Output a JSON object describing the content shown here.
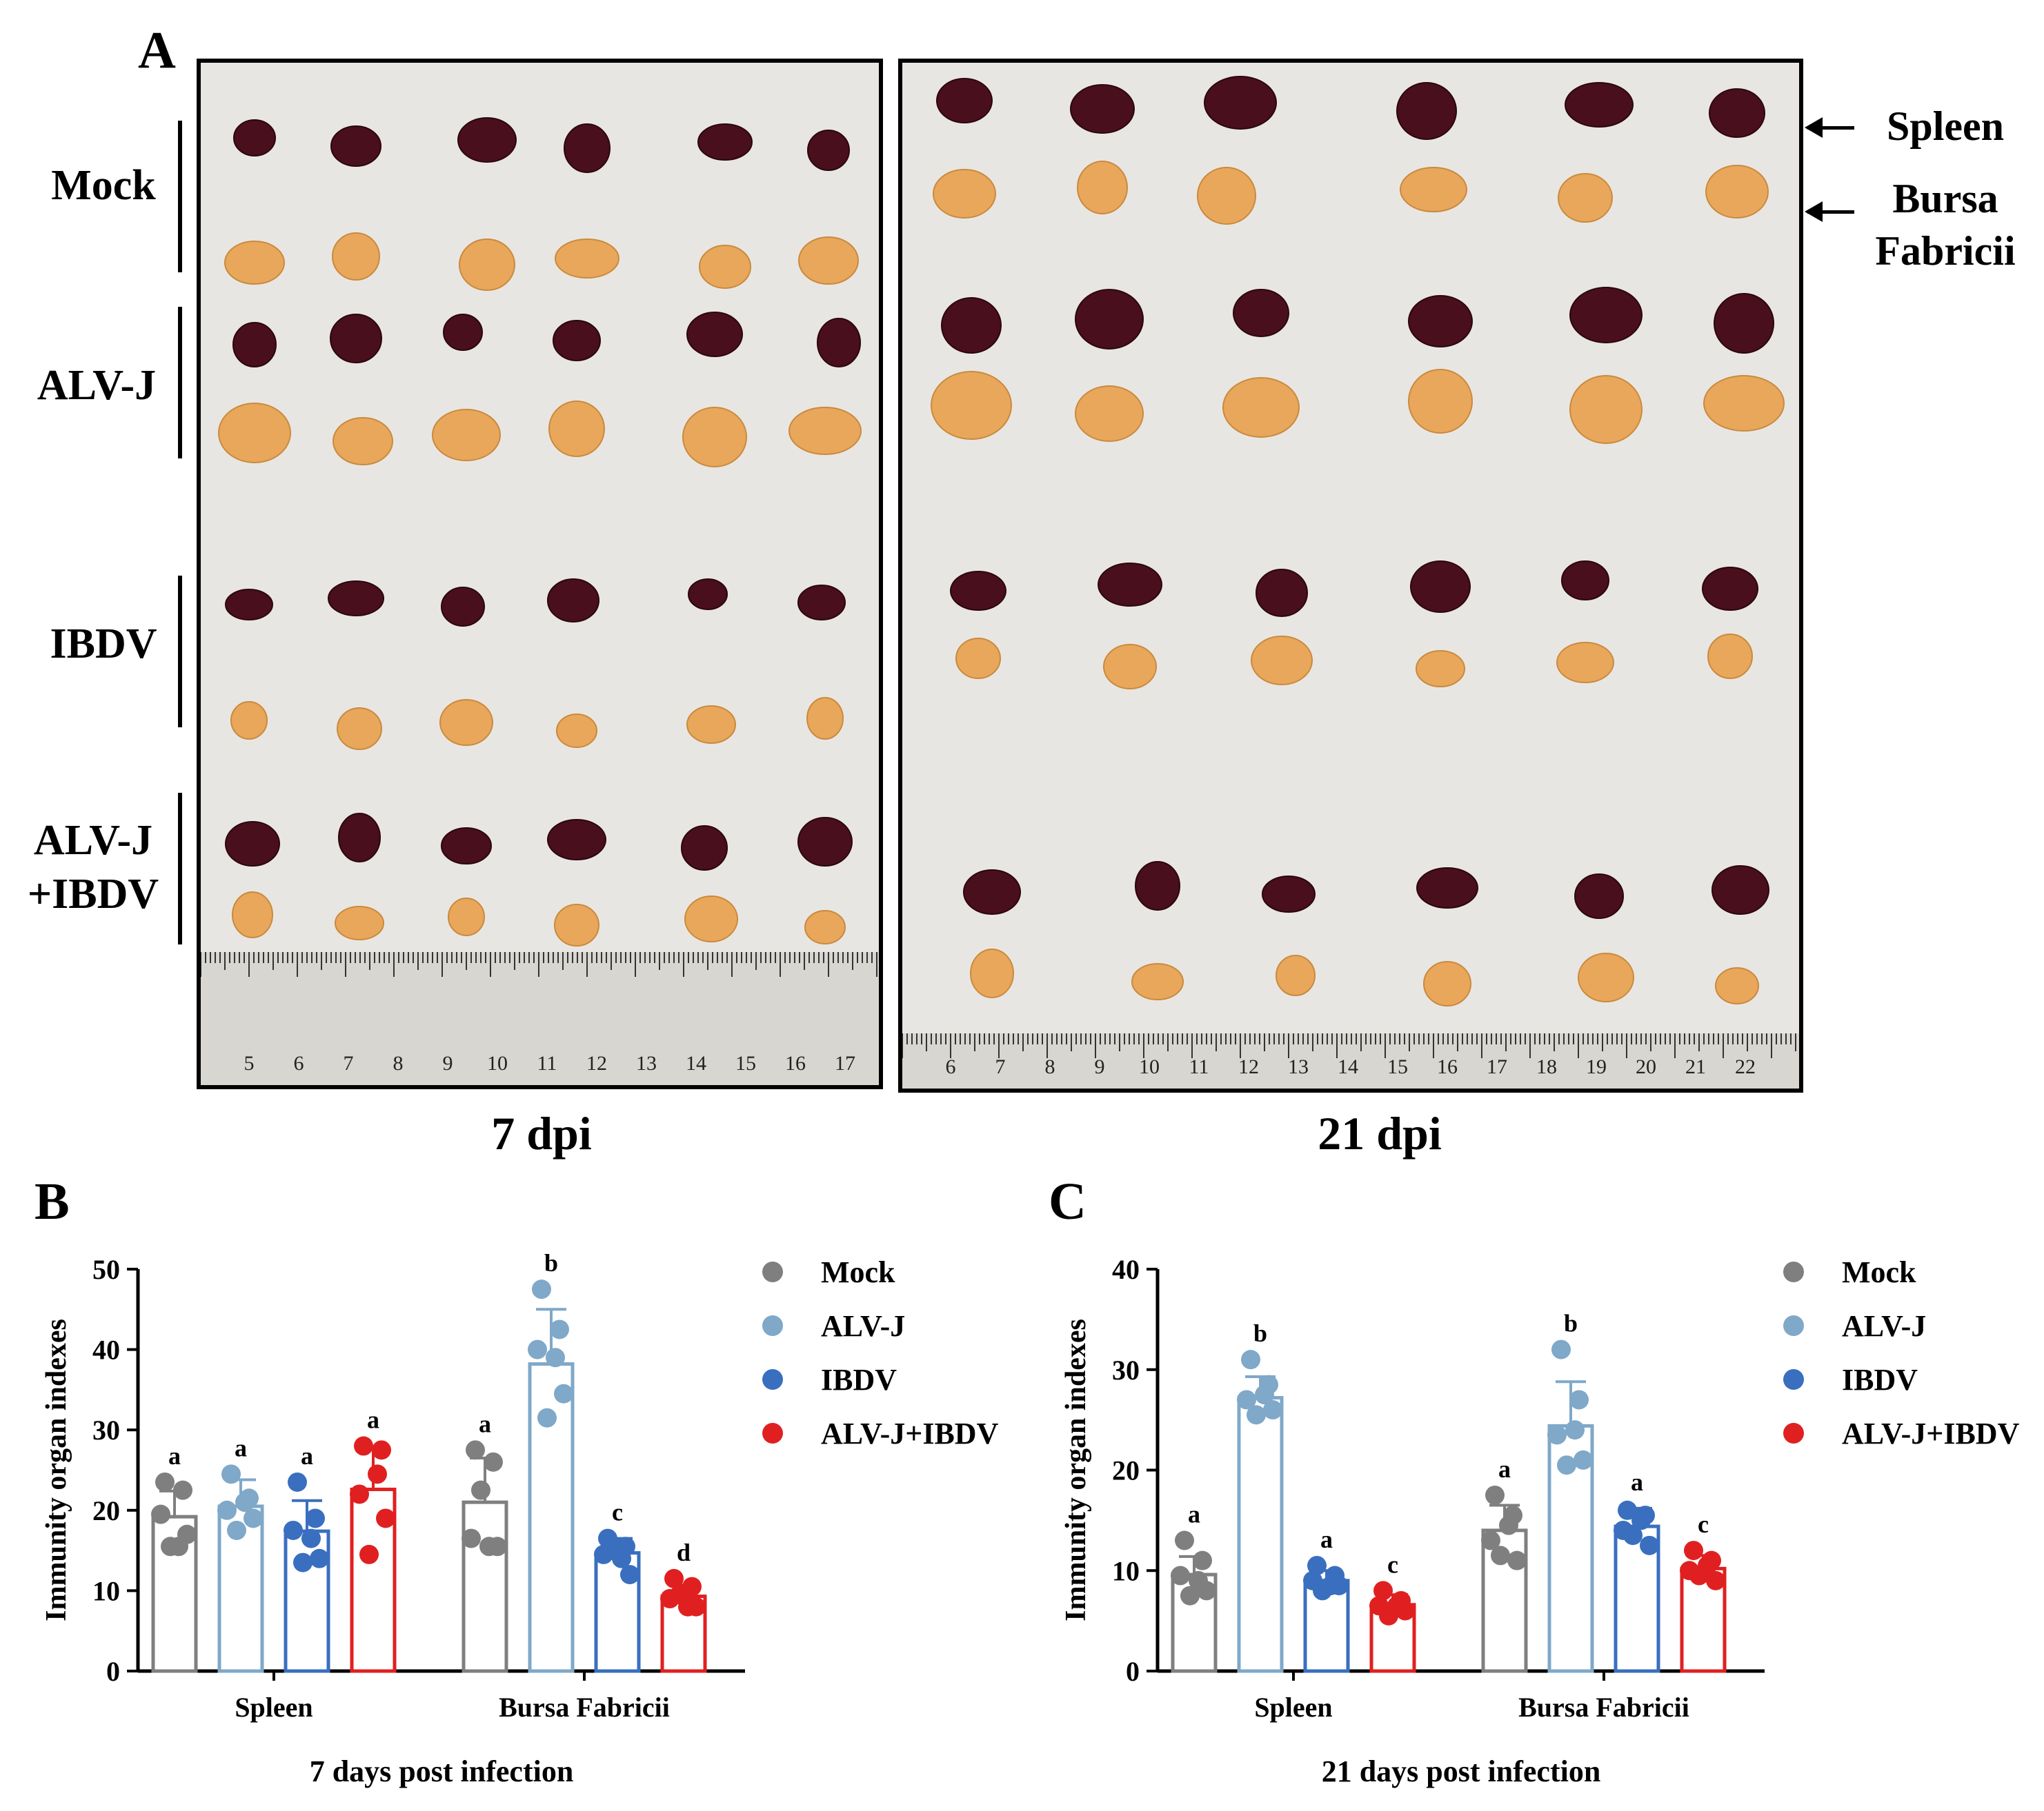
{
  "panel_a": {
    "letter": "A",
    "groups": [
      "Mock",
      "ALV-J",
      "IBDV",
      "ALV-J\n+IBDV"
    ],
    "left_caption": "7 dpi",
    "right_caption": "21 dpi",
    "organs": {
      "spleen": "Spleen",
      "bursa": "Bursa\nFabricii"
    },
    "ruler_left_ticks": [
      "5",
      "6",
      "7",
      "8",
      "9",
      "10",
      "11",
      "12",
      "13",
      "14",
      "15",
      "16",
      "17"
    ],
    "ruler_right_ticks": [
      "6",
      "7",
      "8",
      "9",
      "10",
      "11",
      "12",
      "13",
      "14",
      "15",
      "16",
      "17",
      "18",
      "19",
      "20",
      "21",
      "22"
    ],
    "colors": {
      "spleen": "#4a0f1c",
      "bursa": "#e8a75a",
      "background": "#e8e6e2"
    }
  },
  "chart_data": [
    {
      "panel": "B",
      "type": "bar",
      "title": "",
      "xlabel": "7 days post infection",
      "ylabel": "Immunity organ indexes",
      "ylim": [
        0,
        50
      ],
      "yticks": [
        0,
        10,
        20,
        30,
        40,
        50
      ],
      "categories": [
        "Spleen",
        "Bursa Fabricii"
      ],
      "legend": [
        "Mock",
        "ALV-J",
        "IBDV",
        "ALV-J+IBDV"
      ],
      "legend_position": "right",
      "series": [
        {
          "name": "Mock",
          "color": "#7f7f7f",
          "values": [
            19.2,
            21.0
          ],
          "errors": [
            3.2,
            5.5
          ],
          "letters": [
            "a",
            "a"
          ],
          "points": [
            [
              23.5,
              22.5,
              19.5,
              17.0,
              15.5,
              15.5
            ],
            [
              27.5,
              26.0,
              16.5,
              15.5,
              22.5,
              15.5
            ]
          ]
        },
        {
          "name": "ALV-J",
          "color": "#7fa8c9",
          "values": [
            20.5,
            38.2
          ],
          "errors": [
            3.3,
            6.8
          ],
          "letters": [
            "a",
            "b"
          ],
          "points": [
            [
              24.5,
              21.5,
              20.0,
              19.0,
              17.5,
              21.0
            ],
            [
              47.5,
              42.5,
              40.0,
              34.5,
              31.5,
              39.0
            ]
          ]
        },
        {
          "name": "IBDV",
          "color": "#3a6fbf",
          "values": [
            17.4,
            14.7
          ],
          "errors": [
            3.8,
            1.8
          ],
          "letters": [
            "a",
            "c"
          ],
          "points": [
            [
              23.5,
              19.0,
              17.5,
              14.0,
              13.5,
              16.5
            ],
            [
              16.5,
              15.5,
              14.5,
              12.0,
              15.0,
              14.0
            ]
          ]
        },
        {
          "name": "ALV-J+IBDV",
          "color": "#e02020",
          "values": [
            22.6,
            9.3
          ],
          "errors": [
            5.2,
            1.4
          ],
          "letters": [
            "a",
            "d"
          ],
          "points": [
            [
              28.0,
              27.5,
              22.0,
              19.0,
              14.5,
              24.5
            ],
            [
              11.5,
              10.5,
              9.0,
              8.0,
              9.5,
              8.0
            ]
          ]
        }
      ]
    },
    {
      "panel": "C",
      "type": "bar",
      "title": "",
      "xlabel": "21 days post infection",
      "ylabel": "Immunity organ indexes",
      "ylim": [
        0,
        40
      ],
      "yticks": [
        0,
        10,
        20,
        30,
        40
      ],
      "categories": [
        "Spleen",
        "Bursa Fabricii"
      ],
      "legend": [
        "Mock",
        "ALV-J",
        "IBDV",
        "ALV-J+IBDV"
      ],
      "legend_position": "right",
      "series": [
        {
          "name": "Mock",
          "color": "#7f7f7f",
          "values": [
            9.6,
            14.0
          ],
          "errors": [
            1.8,
            2.5
          ],
          "letters": [
            "a",
            "a"
          ],
          "points": [
            [
              13.0,
              11.0,
              9.5,
              8.0,
              7.5,
              9.0
            ],
            [
              17.5,
              15.5,
              13.0,
              11.0,
              11.5,
              14.5
            ]
          ]
        },
        {
          "name": "ALV-J",
          "color": "#7fa8c9",
          "values": [
            27.2,
            24.4
          ],
          "errors": [
            2.1,
            4.4
          ],
          "letters": [
            "b",
            "b"
          ],
          "points": [
            [
              31.0,
              28.5,
              27.0,
              26.0,
              25.5,
              27.5
            ],
            [
              32.0,
              27.0,
              23.5,
              21.0,
              20.5,
              24.0
            ]
          ]
        },
        {
          "name": "IBDV",
          "color": "#3a6fbf",
          "values": [
            9.0,
            14.4
          ],
          "errors": [
            1.0,
            1.8
          ],
          "letters": [
            "a",
            "a"
          ],
          "points": [
            [
              10.5,
              9.5,
              9.0,
              8.5,
              8.0,
              8.5
            ],
            [
              16.0,
              15.5,
              14.0,
              12.5,
              13.5,
              15.0
            ]
          ]
        },
        {
          "name": "ALV-J+IBDV",
          "color": "#e02020",
          "values": [
            6.6,
            10.2
          ],
          "errors": [
            1.0,
            1.3
          ],
          "letters": [
            "c",
            "c"
          ],
          "points": [
            [
              8.0,
              7.0,
              6.5,
              6.0,
              5.5,
              6.5
            ],
            [
              12.0,
              11.0,
              10.0,
              9.0,
              9.5,
              10.5
            ]
          ]
        }
      ]
    }
  ]
}
